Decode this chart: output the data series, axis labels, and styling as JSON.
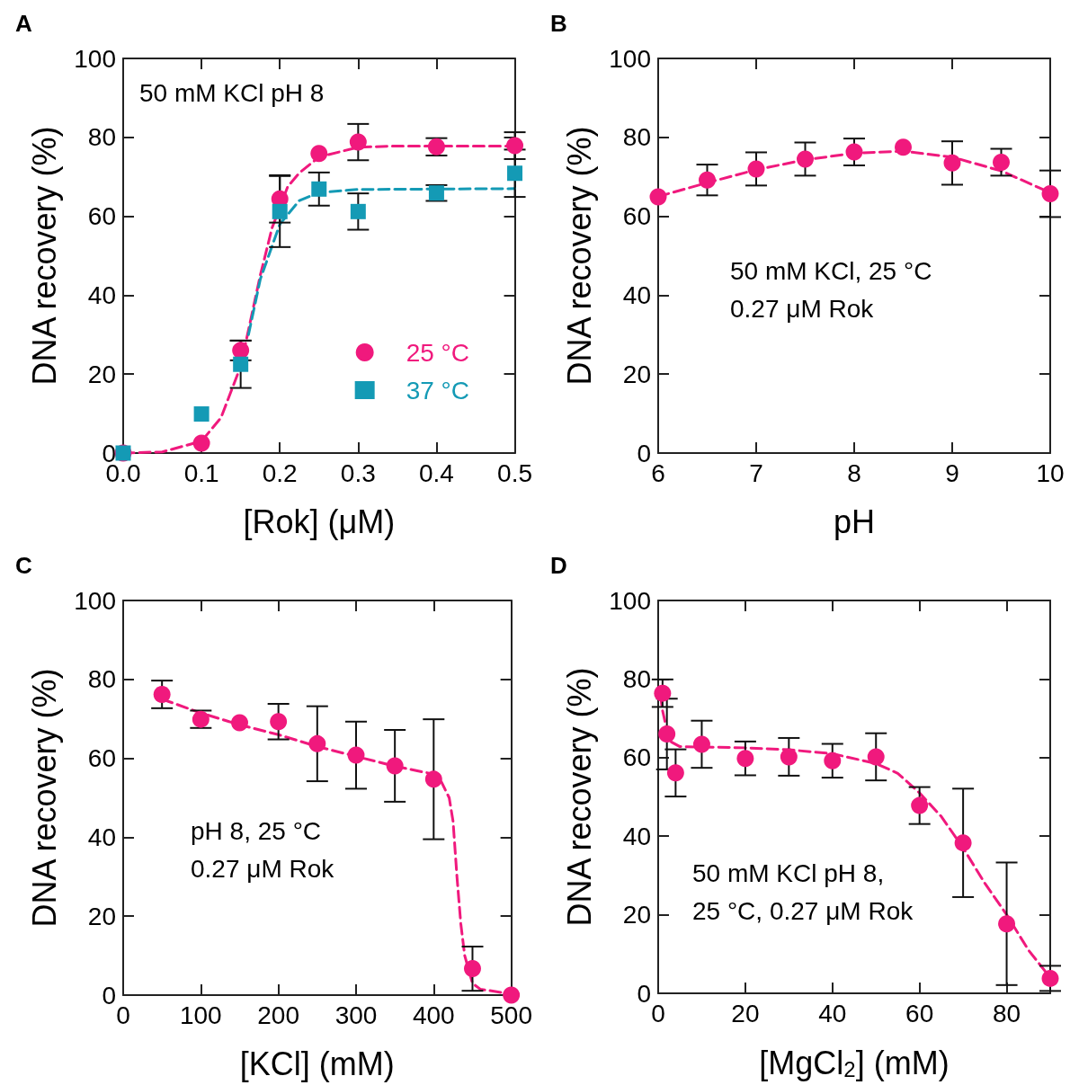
{
  "chart_data": [
    {
      "type": "scatter",
      "title": "A",
      "xlabel": "[Rok] (μM)",
      "ylabel": "DNA recovery (%)",
      "xlim": [
        0,
        0.5
      ],
      "ylim": [
        0,
        100
      ],
      "xticks": [
        {
          "value": 0,
          "label": "0.0"
        },
        0.1,
        0.2,
        0.3,
        0.4,
        0.5
      ],
      "yticks": [
        0,
        20,
        40,
        60,
        80,
        100
      ],
      "grid": false,
      "legend": "bottom right",
      "annotations": [
        "50 mM KCl pH 8"
      ],
      "series": [
        {
          "name": "25 °C",
          "color": "#f0197d",
          "marker": "circle",
          "x": [
            0,
            0.1,
            0.15,
            0.2,
            0.25,
            0.3,
            0.4,
            0.5
          ],
          "values": [
            0,
            2.5,
            26,
            64.4,
            75.9,
            78.8,
            77.6,
            77.9
          ],
          "errors": [
            null,
            null,
            2.5,
            6,
            null,
            4.6,
            2.2,
            3.4
          ]
        },
        {
          "name": "37 °C",
          "color": "#149ab5",
          "marker": "square",
          "x": [
            0,
            0.1,
            0.15,
            0.2,
            0.25,
            0.3,
            0.4,
            0.5
          ],
          "values": [
            0,
            9.9,
            22.5,
            61.2,
            66.9,
            61.2,
            65.9,
            70.9
          ],
          "errors": [
            null,
            null,
            6,
            9,
            4.2,
            4.6,
            2,
            6
          ]
        },
        {
          "type": "line",
          "line_style": "dashed",
          "color": "#f0197d",
          "x": [
            0,
            0.05,
            0.1,
            0.125,
            0.15,
            0.175,
            0.19,
            0.21,
            0.225,
            0.25,
            0.3,
            0.35,
            0.5
          ],
          "values": [
            0,
            0.3,
            3,
            9,
            22,
            45,
            57,
            67.5,
            71,
            75,
            77.5,
            77.8,
            77.8
          ]
        },
        {
          "type": "line",
          "line_style": "dashed",
          "color": "#149ab5",
          "x": [
            0.16,
            0.175,
            0.2,
            0.225,
            0.25,
            0.3,
            0.5
          ],
          "values": [
            30,
            44,
            58,
            64,
            66,
            66.8,
            67
          ]
        }
      ]
    },
    {
      "type": "scatter",
      "title": "B",
      "xlabel": "pH",
      "ylabel": "DNA recovery (%)",
      "xlim": [
        6,
        10
      ],
      "ylim": [
        0,
        100
      ],
      "xticks": [
        6,
        7,
        8,
        9,
        10
      ],
      "yticks": [
        0,
        20,
        40,
        60,
        80,
        100
      ],
      "grid": false,
      "annotations": [
        "50 mM KCl, 25 °C\n0.27 μM Rok"
      ],
      "series": [
        {
          "color": "#f0197d",
          "marker": "circle",
          "x": [
            6,
            6.5,
            7,
            7.5,
            8,
            8.5,
            9,
            9.5,
            10
          ],
          "values": [
            64.9,
            69.2,
            72,
            74.5,
            76.3,
            77.5,
            73.5,
            73.7,
            65.7
          ],
          "errors": [
            null,
            3.9,
            4.2,
            4.2,
            3.4,
            null,
            5.5,
            3.4,
            5.9
          ]
        },
        {
          "type": "line",
          "line_style": "dashed",
          "color": "#f0197d",
          "x": [
            6,
            6.5,
            7,
            7.5,
            8,
            8.5,
            9,
            9.5,
            10
          ],
          "values": [
            65,
            68.5,
            71.8,
            74.3,
            76,
            76.5,
            75,
            71.5,
            66
          ]
        }
      ]
    },
    {
      "type": "scatter",
      "title": "C",
      "xlabel": "[KCl] (mM)",
      "ylabel": "DNA recovery (%)",
      "xlim": [
        0,
        500
      ],
      "ylim": [
        0,
        100
      ],
      "xticks": [
        0,
        100,
        200,
        300,
        400,
        500
      ],
      "yticks": [
        0,
        20,
        40,
        60,
        80,
        100
      ],
      "grid": false,
      "annotations": [
        "pH 8, 25 °C\n0.27 μM Rok"
      ],
      "series": [
        {
          "color": "#f0197d",
          "marker": "circle",
          "x": [
            50,
            100,
            150,
            200,
            250,
            300,
            350,
            400,
            450,
            500
          ],
          "values": [
            76.2,
            69.9,
            69,
            69.3,
            63.7,
            60.8,
            58.1,
            54.7,
            6.7,
            0
          ],
          "errors": [
            3.5,
            2.2,
            null,
            4.5,
            9.5,
            8.5,
            9.1,
            15.2,
            5.6,
            null
          ]
        },
        {
          "type": "line",
          "line_style": "dashed",
          "color": "#f0197d",
          "x": [
            50,
            100,
            150,
            200,
            250,
            300,
            350,
            400,
            410,
            420,
            425,
            430,
            435,
            440,
            450,
            460,
            500
          ],
          "values": [
            75,
            71.5,
            68.5,
            66,
            63,
            60.5,
            58,
            56,
            54,
            50,
            44,
            30,
            18,
            10,
            3,
            1.5,
            0.3
          ]
        }
      ]
    },
    {
      "type": "scatter",
      "title": "D",
      "xlabel": "[MgCl$_{2}$] (mM)",
      "ylabel": "DNA recovery (%)",
      "xlim": [
        0,
        90
      ],
      "ylim": [
        0,
        100
      ],
      "xticks": [
        0,
        20,
        40,
        60,
        80
      ],
      "yticks": [
        0,
        20,
        40,
        60,
        80,
        100
      ],
      "grid": false,
      "annotations": [
        "50 mM KCl pH 8,\n25 °C, 0.27 μM Rok"
      ],
      "series": [
        {
          "color": "#f0197d",
          "marker": "circle",
          "x": [
            1,
            2,
            4,
            10,
            20,
            30,
            40,
            50,
            60,
            70,
            80,
            90
          ],
          "values": [
            76.4,
            66,
            56.1,
            63.4,
            59.8,
            60.2,
            59.2,
            60.2,
            47.8,
            38.3,
            17.7,
            3.8
          ],
          "errors": [
            3.5,
            9,
            6,
            6,
            4.3,
            4.8,
            4.3,
            6,
            4.7,
            13.8,
            15.6,
            3.2
          ]
        },
        {
          "type": "line",
          "line_style": "dashed",
          "color": "#f0197d",
          "x": [
            0.5,
            1,
            2,
            3,
            5,
            10,
            20,
            30,
            40,
            50,
            55,
            60,
            65,
            70,
            75,
            80,
            85,
            90
          ],
          "values": [
            76,
            72,
            67,
            64,
            62.8,
            62.7,
            62.5,
            62,
            61,
            58.5,
            56,
            51,
            45,
            37,
            28,
            20,
            11,
            4
          ]
        }
      ]
    }
  ]
}
